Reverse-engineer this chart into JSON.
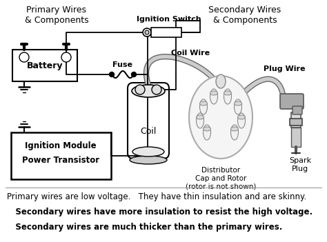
{
  "background_color": "#ffffff",
  "title_left": "Primary Wires\n& Components",
  "title_right": "Secondary Wires\n& Components",
  "labels": {
    "ignition_switch": "Ignition Switch",
    "fuse": "Fuse",
    "battery": "Battery",
    "coil_wire": "Coil Wire",
    "plug_wire": "Plug Wire",
    "coil": "Coil",
    "distributor": "Distributor\nCap and Rotor\n(rotor is not shown)",
    "spark_plug": "Spark\nPlug",
    "ignition_module": "Ignition Module",
    "power_transistor": "Power Transistor"
  },
  "footer_lines": [
    {
      "text": "Primary wires are low voltage.   They have thin insulation and are skinny.",
      "bold": false,
      "fontsize": 8.5
    },
    {
      "text": "   Secondary wires have more insulation to resist the high voltage.",
      "bold": true,
      "fontsize": 8.5
    },
    {
      "text": "   Secondary wires are much thicker than the primary wires.",
      "bold": true,
      "fontsize": 8.5
    }
  ],
  "wire_color_primary": "#000000",
  "wire_color_secondary": "#999999",
  "component_color": "#dddddd",
  "line_color": "#000000",
  "figsize": [
    4.74,
    3.51
  ],
  "dpi": 100,
  "xlim": [
    0,
    474
  ],
  "ylim": [
    0,
    351
  ]
}
